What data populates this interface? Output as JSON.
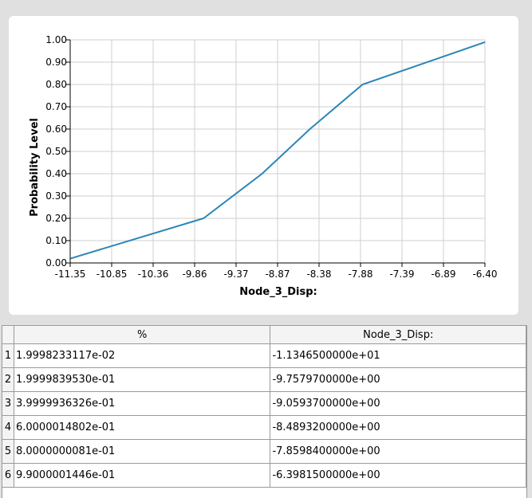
{
  "chart_data": {
    "type": "line",
    "xlabel": "Node_3_Disp:",
    "ylabel": "Probability Level",
    "x_tick_labels": [
      "-11.35",
      "-10.85",
      "-10.36",
      "-9.86",
      "-9.37",
      "-8.87",
      "-8.38",
      "-7.88",
      "-7.39",
      "-6.89",
      "-6.40"
    ],
    "y_tick_labels": [
      "0.00",
      "0.10",
      "0.20",
      "0.30",
      "0.40",
      "0.50",
      "0.60",
      "0.70",
      "0.80",
      "0.90",
      "1.00"
    ],
    "xlim": [
      -11.35,
      -6.4
    ],
    "ylim": [
      0,
      1
    ],
    "grid": true,
    "line_color": "#2a86b9",
    "series": [
      {
        "x": [
          -11.3465,
          -9.75797,
          -9.05937,
          -8.48932,
          -7.85984,
          -6.39815
        ],
        "y": [
          0.019998233117,
          0.1999983953,
          0.39999936326,
          0.60000014802,
          0.80000000081,
          0.99000001446
        ]
      }
    ]
  },
  "table": {
    "headers": [
      "%",
      "Node_3_Disp:"
    ],
    "rows": [
      {
        "index": "1",
        "percent": "1.9998233117e-02",
        "disp": "-1.1346500000e+01"
      },
      {
        "index": "2",
        "percent": "1.9999839530e-01",
        "disp": "-9.7579700000e+00"
      },
      {
        "index": "3",
        "percent": "3.9999936326e-01",
        "disp": "-9.0593700000e+00"
      },
      {
        "index": "4",
        "percent": "6.0000014802e-01",
        "disp": "-8.4893200000e+00"
      },
      {
        "index": "5",
        "percent": "8.0000000081e-01",
        "disp": "-7.8598400000e+00"
      },
      {
        "index": "6",
        "percent": "9.9000001446e-01",
        "disp": "-6.3981500000e+00"
      }
    ]
  }
}
